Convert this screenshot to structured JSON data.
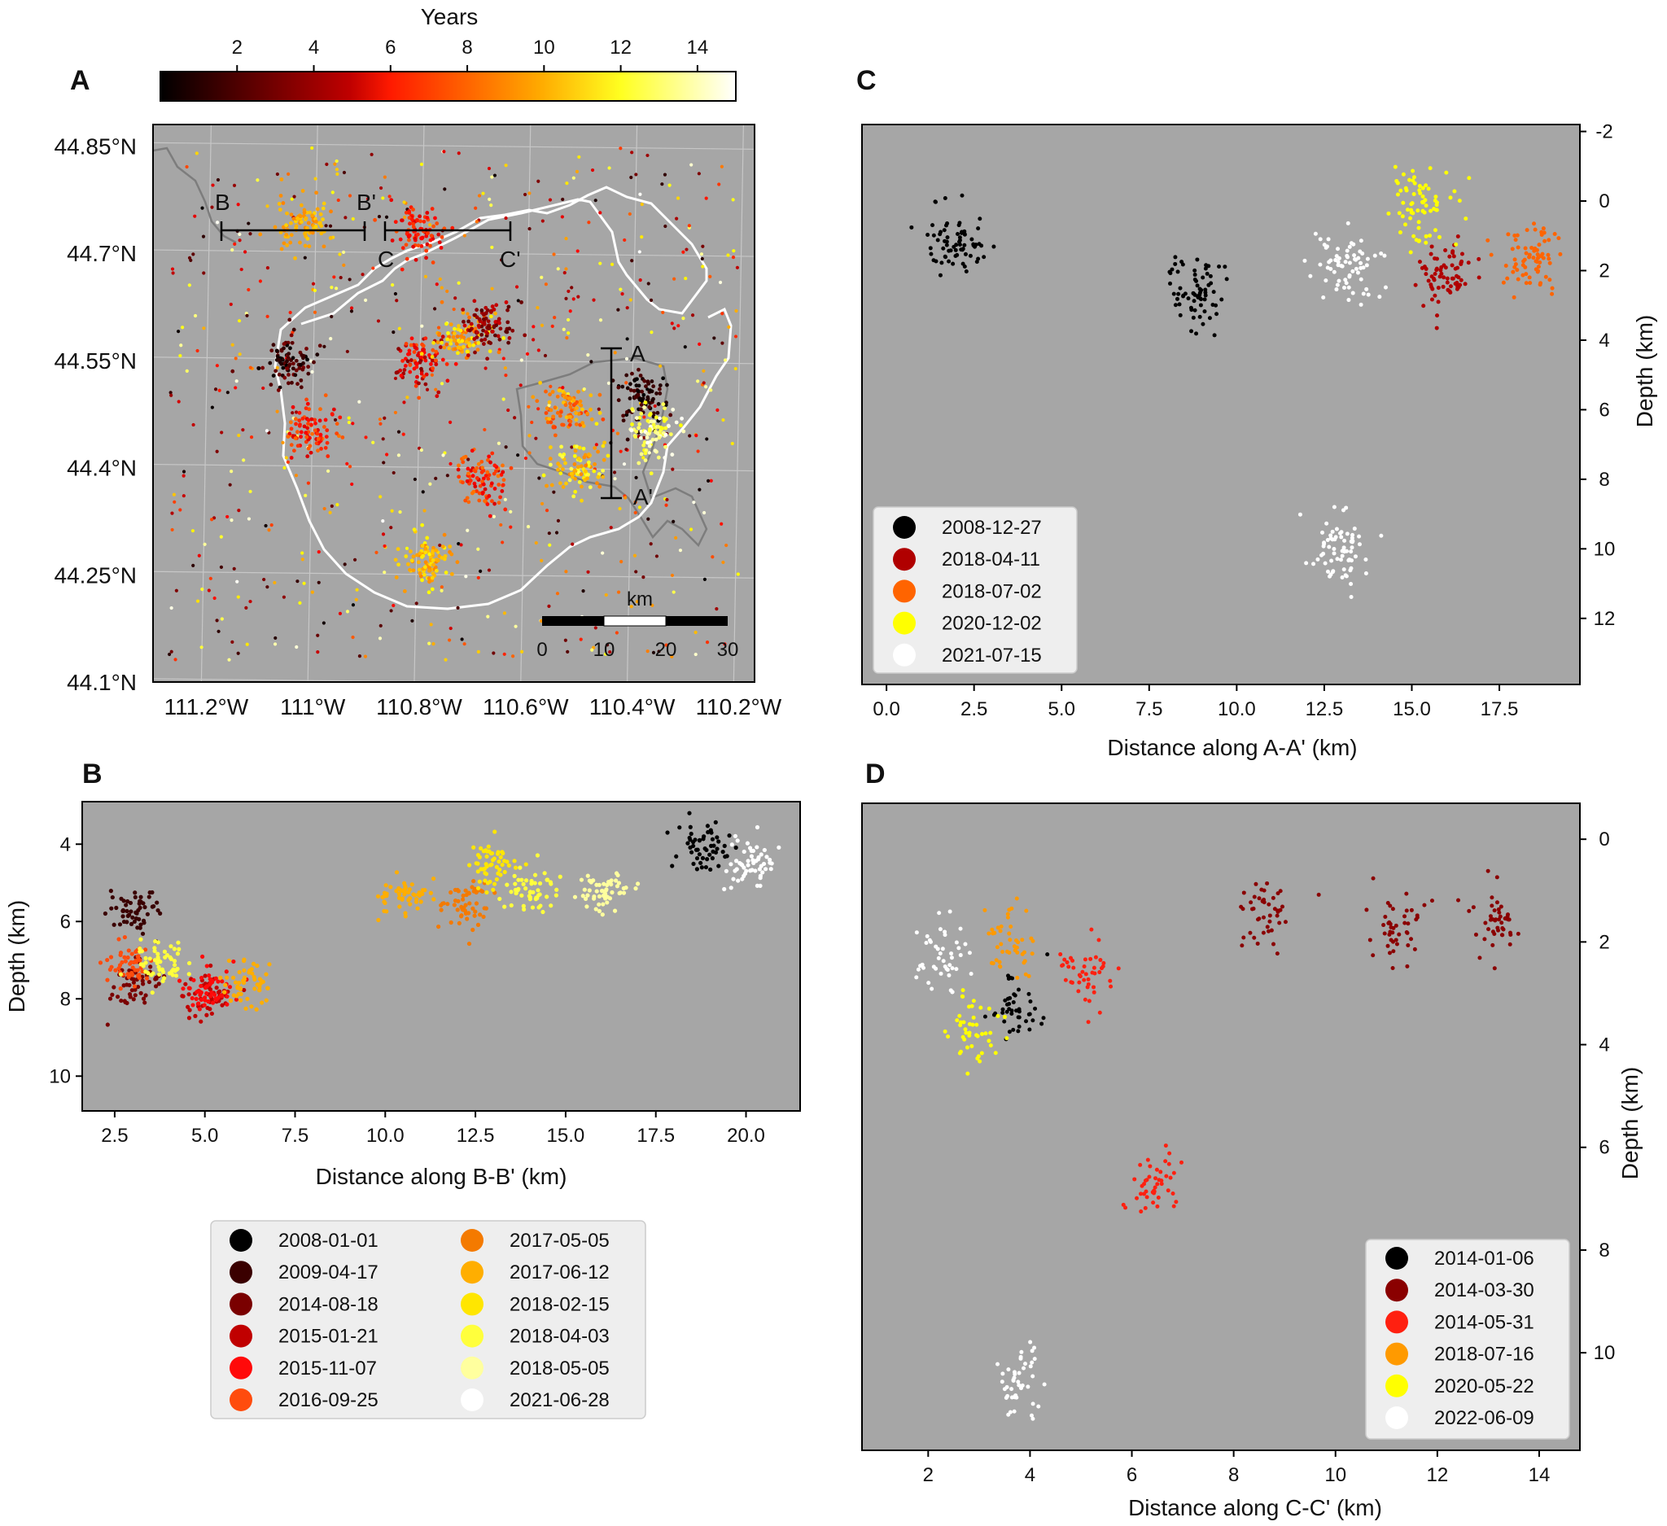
{
  "colors": {
    "plot_bg": "#a6a6a6",
    "grid": "#c7c7c7",
    "legend_bg": "#eeeeee",
    "caldera": "#ffffff",
    "lake": "#808080"
  },
  "colorbar": {
    "label": "Years",
    "range": [
      0,
      15
    ],
    "ticks": [
      "2",
      "4",
      "6",
      "8",
      "10",
      "12",
      "14"
    ]
  },
  "chart_data": [
    {
      "panel": "A",
      "type": "scatter",
      "title": "",
      "xticks": [
        "111.2°W",
        "111°W",
        "110.8°W",
        "110.6°W",
        "110.4°W",
        "110.2°W"
      ],
      "yticks": [
        "44.85°N",
        "44.7°N",
        "44.55°N",
        "44.4°N",
        "44.25°N",
        "44.1°N"
      ],
      "xlim": [
        -111.3,
        -110.17
      ],
      "ylim": [
        44.1,
        44.88
      ],
      "grid": true,
      "color_scale": "Years (0-15), hot colormap",
      "profiles": [
        {
          "start": "B",
          "end": "B'"
        },
        {
          "start": "C",
          "end": "C'"
        },
        {
          "start": "A",
          "end": "A'"
        }
      ],
      "scalebar": {
        "label": "km",
        "ticks": [
          "0",
          "10",
          "20",
          "30"
        ]
      },
      "clusters": [
        {
          "lon": -111.05,
          "lat": 44.55,
          "years_from": 0,
          "years_to": 3
        },
        {
          "lon": -110.8,
          "lat": 44.55,
          "years_from": 3,
          "years_to": 8
        },
        {
          "lon": -110.38,
          "lat": 44.5,
          "years_from": 0,
          "years_to": 2
        },
        {
          "lon": -110.36,
          "lat": 44.45,
          "years_from": 12,
          "years_to": 15
        },
        {
          "lon": -111.02,
          "lat": 44.74,
          "years_from": 9,
          "years_to": 11
        },
        {
          "lon": -110.8,
          "lat": 44.73,
          "years_from": 5,
          "years_to": 8
        },
        {
          "lon": -110.78,
          "lat": 44.27,
          "years_from": 9,
          "years_to": 12
        },
        {
          "lon": -110.5,
          "lat": 44.4,
          "years_from": 9,
          "years_to": 13
        },
        {
          "lon": -110.68,
          "lat": 44.38,
          "years_from": 5,
          "years_to": 9
        },
        {
          "lon": -110.72,
          "lat": 44.58,
          "years_from": 8,
          "years_to": 12
        },
        {
          "lon": -111.0,
          "lat": 44.45,
          "years_from": 5,
          "years_to": 9
        },
        {
          "lon": -110.52,
          "lat": 44.48,
          "years_from": 7,
          "years_to": 11
        },
        {
          "lon": -110.67,
          "lat": 44.6,
          "years_from": 2,
          "years_to": 5
        }
      ]
    },
    {
      "panel": "B",
      "type": "scatter",
      "xlabel": "Distance along  B-B' (km)",
      "ylabel": "Depth (km)",
      "xlim": [
        1.6,
        21.5
      ],
      "ylim": [
        10.9,
        2.9
      ],
      "y_inverted": true,
      "xticks": [
        2.5,
        5.0,
        7.5,
        10.0,
        12.5,
        15.0,
        17.5,
        20.0
      ],
      "yticks": [
        4,
        6,
        8,
        10
      ],
      "legend_position": "below-center",
      "series": [
        {
          "name": "2008-01-01",
          "color": "#000000",
          "clusters": [
            [
              18.8,
              4.1
            ]
          ]
        },
        {
          "name": "2009-04-17",
          "color": "#3a0000",
          "clusters": [
            [
              3.1,
              5.7
            ]
          ]
        },
        {
          "name": "2014-08-18",
          "color": "#7a0000",
          "clusters": [
            [
              3.0,
              7.6
            ]
          ]
        },
        {
          "name": "2015-01-21",
          "color": "#c00000",
          "clusters": [
            [
              5.1,
              7.9
            ]
          ]
        },
        {
          "name": "2015-11-07",
          "color": "#ff0a0a",
          "clusters": [
            [
              5.0,
              7.8
            ]
          ]
        },
        {
          "name": "2016-09-25",
          "color": "#ff4c0d",
          "clusters": [
            [
              2.9,
              7.1
            ]
          ]
        },
        {
          "name": "2017-05-05",
          "color": "#f47a00",
          "clusters": [
            [
              12.2,
              5.5
            ]
          ]
        },
        {
          "name": "2017-06-12",
          "color": "#ffae00",
          "clusters": [
            [
              10.5,
              5.4
            ],
            [
              6.2,
              7.6
            ]
          ]
        },
        {
          "name": "2018-02-15",
          "color": "#ffe600",
          "clusters": [
            [
              13.0,
              4.6
            ]
          ]
        },
        {
          "name": "2018-04-03",
          "color": "#ffff3c",
          "clusters": [
            [
              14.0,
              5.2
            ],
            [
              3.7,
              7.1
            ]
          ]
        },
        {
          "name": "2018-05-05",
          "color": "#ffff9e",
          "clusters": [
            [
              16.1,
              5.2
            ]
          ]
        },
        {
          "name": "2021-06-28",
          "color": "#ffffff",
          "clusters": [
            [
              20.1,
              4.5
            ]
          ]
        }
      ]
    },
    {
      "panel": "C",
      "type": "scatter",
      "xlabel": "Distance along A-A' (km)",
      "ylabel": "Depth (km)",
      "xlim": [
        -0.7,
        19.8
      ],
      "ylim": [
        13.9,
        -2.2
      ],
      "y_inverted": true,
      "xticks": [
        0.0,
        2.5,
        5.0,
        7.5,
        10.0,
        12.5,
        15.0,
        17.5
      ],
      "yticks": [
        -2,
        0,
        2,
        4,
        6,
        8,
        10,
        12
      ],
      "legend_position": "lower-left",
      "series": [
        {
          "name": "2008-12-27",
          "color": "#000000",
          "clusters": [
            [
              2.0,
              1.2
            ],
            [
              9.0,
              2.5
            ]
          ]
        },
        {
          "name": "2018-04-11",
          "color": "#b00000",
          "clusters": [
            [
              15.9,
              2.0
            ]
          ]
        },
        {
          "name": "2018-07-02",
          "color": "#ff6400",
          "clusters": [
            [
              18.4,
              1.7
            ]
          ]
        },
        {
          "name": "2020-12-02",
          "color": "#ffff00",
          "clusters": [
            [
              15.2,
              0.2
            ]
          ]
        },
        {
          "name": "2021-07-15",
          "color": "#ffffff",
          "clusters": [
            [
              13.2,
              1.8
            ],
            [
              12.9,
              10.0
            ]
          ]
        }
      ]
    },
    {
      "panel": "D",
      "type": "scatter",
      "xlabel": "Distance along C-C' (km)",
      "ylabel": "Depth (km)",
      "xlim": [
        0.7,
        14.8
      ],
      "ylim": [
        11.9,
        -0.7
      ],
      "y_inverted": true,
      "xticks": [
        2,
        4,
        6,
        8,
        10,
        12,
        14
      ],
      "yticks": [
        0,
        2,
        4,
        6,
        8,
        10
      ],
      "legend_position": "lower-right",
      "series": [
        {
          "name": "2014-01-06",
          "color": "#000000",
          "clusters": [
            [
              3.7,
              3.3
            ]
          ]
        },
        {
          "name": "2014-03-30",
          "color": "#8a0000",
          "clusters": [
            [
              8.6,
              1.4
            ],
            [
              11.3,
              1.7
            ],
            [
              13.1,
              1.6
            ]
          ]
        },
        {
          "name": "2014-05-31",
          "color": "#ff2010",
          "clusters": [
            [
              5.1,
              2.6
            ],
            [
              6.4,
              6.7
            ]
          ]
        },
        {
          "name": "2018-07-16",
          "color": "#ff9a00",
          "clusters": [
            [
              3.6,
              2.0
            ]
          ]
        },
        {
          "name": "2020-05-22",
          "color": "#ffff00",
          "clusters": [
            [
              2.9,
              3.7
            ]
          ]
        },
        {
          "name": "2022-06-09",
          "color": "#ffffff",
          "clusters": [
            [
              2.3,
              2.2
            ],
            [
              3.8,
              10.6
            ]
          ]
        }
      ]
    }
  ]
}
